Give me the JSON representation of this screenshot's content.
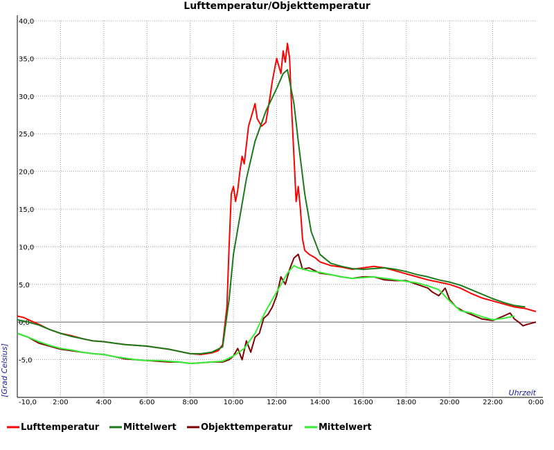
{
  "chart_data": {
    "type": "line",
    "title": "Lufttemperatur/Objekttemperatur",
    "xlabel": "Uhrzeit",
    "ylabel": "[Grad Celsius]",
    "xlim": [
      0,
      24
    ],
    "ylim": [
      -10,
      40
    ],
    "x_ticks": [
      {
        "value": 2,
        "label": "2:00"
      },
      {
        "value": 4,
        "label": "4:00"
      },
      {
        "value": 6,
        "label": "6:00"
      },
      {
        "value": 8,
        "label": "8:00"
      },
      {
        "value": 10,
        "label": "10:00"
      },
      {
        "value": 12,
        "label": "12:00"
      },
      {
        "value": 14,
        "label": "14:00"
      },
      {
        "value": 16,
        "label": "16:00"
      },
      {
        "value": 18,
        "label": "18:00"
      },
      {
        "value": 20,
        "label": "20:00"
      },
      {
        "value": 22,
        "label": "22:00"
      },
      {
        "value": 24,
        "label": "0:00"
      }
    ],
    "y_ticks": [
      {
        "value": 40,
        "label": "40,0"
      },
      {
        "value": 35,
        "label": "35,0"
      },
      {
        "value": 30,
        "label": "30,0"
      },
      {
        "value": 25,
        "label": "25,0"
      },
      {
        "value": 20,
        "label": "20,0"
      },
      {
        "value": 15,
        "label": "15,0"
      },
      {
        "value": 10,
        "label": "10,0"
      },
      {
        "value": 5,
        "label": "5,0"
      },
      {
        "value": 0,
        "label": "0,0"
      },
      {
        "value": -5,
        "label": "-5,0"
      },
      {
        "value": -10,
        "label": "-10,0"
      }
    ],
    "grid": true,
    "legend_position": "bottom",
    "series": [
      {
        "name": "Lufttemperatur",
        "color": "#ff0000",
        "x": [
          0,
          0.3,
          0.6,
          1,
          1.5,
          2,
          2.5,
          3,
          3.5,
          4,
          4.5,
          5,
          5.5,
          6,
          6.5,
          7,
          7.5,
          8,
          8.5,
          9,
          9.3,
          9.5,
          9.7,
          9.8,
          9.9,
          10,
          10.1,
          10.2,
          10.3,
          10.4,
          10.5,
          10.7,
          10.9,
          11.0,
          11.1,
          11.3,
          11.5,
          11.7,
          11.8,
          12.0,
          12.2,
          12.3,
          12.4,
          12.5,
          12.6,
          12.7,
          12.8,
          12.9,
          13.0,
          13.1,
          13.2,
          13.3,
          13.5,
          13.8,
          14,
          14.5,
          15,
          15.5,
          16,
          16.5,
          17,
          17.5,
          18,
          18.5,
          19,
          19.5,
          20,
          20.5,
          21,
          21.5,
          22,
          22.5,
          23,
          23.5,
          24
        ],
        "y": [
          0.8,
          0.6,
          0.2,
          -0.3,
          -1.0,
          -1.5,
          -1.8,
          -2.2,
          -2.5,
          -2.6,
          -2.8,
          -3.0,
          -3.1,
          -3.2,
          -3.4,
          -3.6,
          -3.9,
          -4.2,
          -4.3,
          -4.1,
          -3.8,
          -3.0,
          2.0,
          10.0,
          17.0,
          18.0,
          16.0,
          17.5,
          20.0,
          22.0,
          21.0,
          26.0,
          28.0,
          29.0,
          27.0,
          26.0,
          26.5,
          30.0,
          32.0,
          35.0,
          33.0,
          36.0,
          34.5,
          37.0,
          35.0,
          28.0,
          22.0,
          16.0,
          18.0,
          15.0,
          11.0,
          9.5,
          9.0,
          8.5,
          8.0,
          7.5,
          7.3,
          7.0,
          7.2,
          7.4,
          7.2,
          6.8,
          6.4,
          6.0,
          5.6,
          5.3,
          5.0,
          4.5,
          3.8,
          3.2,
          2.8,
          2.4,
          2.0,
          1.8,
          1.4
        ]
      },
      {
        "name": "Mittelwert",
        "color": "#1a7a1a",
        "x": [
          0,
          0.5,
          1,
          1.5,
          2,
          2.5,
          3,
          3.5,
          4,
          4.5,
          5,
          5.5,
          6,
          6.5,
          7,
          7.5,
          8,
          8.5,
          9,
          9.5,
          9.8,
          10.0,
          10.3,
          10.6,
          11.0,
          11.5,
          12.0,
          12.3,
          12.5,
          12.8,
          13.0,
          13.3,
          13.6,
          14,
          14.5,
          15,
          15.5,
          16,
          16.5,
          17,
          17.5,
          18,
          18.5,
          19,
          19.5,
          20,
          20.5,
          21,
          21.5,
          22,
          22.5,
          23,
          23.5
        ],
        "y": [
          0.3,
          0.0,
          -0.4,
          -1.0,
          -1.5,
          -1.9,
          -2.2,
          -2.5,
          -2.6,
          -2.8,
          -3.0,
          -3.1,
          -3.2,
          -3.4,
          -3.6,
          -3.9,
          -4.2,
          -4.2,
          -4.0,
          -3.3,
          3.0,
          9.0,
          14.0,
          19.0,
          24.0,
          28.0,
          31.0,
          33.0,
          33.5,
          29.0,
          24.0,
          17.0,
          12.0,
          9.0,
          7.8,
          7.4,
          7.1,
          7.0,
          7.1,
          7.2,
          7.0,
          6.7,
          6.3,
          6.0,
          5.6,
          5.3,
          4.9,
          4.3,
          3.7,
          3.1,
          2.6,
          2.2,
          2.0
        ]
      },
      {
        "name": "Objekttemperatur",
        "color": "#800000",
        "x": [
          0,
          0.5,
          1,
          1.5,
          2,
          2.5,
          3,
          3.5,
          4,
          4.5,
          5,
          5.5,
          6,
          6.5,
          7,
          7.5,
          8,
          8.5,
          9,
          9.5,
          9.8,
          10.0,
          10.2,
          10.4,
          10.6,
          10.8,
          11.0,
          11.2,
          11.4,
          11.6,
          11.8,
          12.0,
          12.2,
          12.4,
          12.6,
          12.8,
          13.0,
          13.2,
          13.5,
          14,
          14.5,
          15,
          15.5,
          16,
          16.5,
          17,
          17.5,
          18,
          18.5,
          19,
          19.2,
          19.5,
          19.8,
          20.0,
          20.3,
          20.6,
          21,
          21.5,
          22,
          22.5,
          22.8,
          23.0,
          23.2,
          23.4,
          23.6,
          24
        ],
        "y": [
          -1.5,
          -2.0,
          -2.8,
          -3.2,
          -3.6,
          -3.8,
          -4.0,
          -4.2,
          -4.3,
          -4.6,
          -4.9,
          -5.0,
          -5.1,
          -5.2,
          -5.3,
          -5.3,
          -5.5,
          -5.4,
          -5.3,
          -5.3,
          -5.0,
          -4.5,
          -3.5,
          -5.0,
          -2.5,
          -4.0,
          -2.0,
          -1.5,
          0.5,
          1.0,
          2.0,
          3.5,
          6.0,
          5.0,
          7.0,
          8.5,
          9.0,
          7.0,
          7.2,
          6.5,
          6.3,
          6.0,
          5.8,
          6.0,
          6.0,
          5.6,
          5.5,
          5.5,
          5.0,
          4.5,
          4.0,
          3.5,
          4.5,
          3.0,
          2.0,
          1.5,
          1.0,
          0.4,
          0.2,
          0.8,
          1.2,
          0.4,
          0.0,
          -0.5,
          -0.3,
          0.0
        ]
      },
      {
        "name": "Mittelwert",
        "color": "#33ee33",
        "x": [
          0,
          0.5,
          1,
          1.5,
          2,
          2.5,
          3,
          3.5,
          4,
          4.5,
          5,
          5.5,
          6,
          6.5,
          7,
          7.5,
          8,
          8.5,
          9,
          9.5,
          10.0,
          10.5,
          11.0,
          11.5,
          12.0,
          12.5,
          12.8,
          13.0,
          13.5,
          14,
          14.5,
          15,
          15.5,
          16,
          16.5,
          17,
          17.5,
          18,
          18.5,
          19,
          19.5,
          20,
          20.5,
          21,
          21.5,
          22,
          22.5,
          23
        ],
        "y": [
          -1.5,
          -2.0,
          -2.6,
          -3.1,
          -3.5,
          -3.7,
          -4.0,
          -4.2,
          -4.3,
          -4.6,
          -4.8,
          -5.0,
          -5.1,
          -5.1,
          -5.2,
          -5.3,
          -5.5,
          -5.4,
          -5.3,
          -5.2,
          -4.5,
          -3.5,
          -1.5,
          1.5,
          4.0,
          6.5,
          7.5,
          7.2,
          6.8,
          6.6,
          6.3,
          6.0,
          5.8,
          5.9,
          6.0,
          5.8,
          5.6,
          5.4,
          5.2,
          4.8,
          4.3,
          2.8,
          1.5,
          1.2,
          0.7,
          0.3,
          0.5,
          0.8
        ]
      }
    ]
  }
}
